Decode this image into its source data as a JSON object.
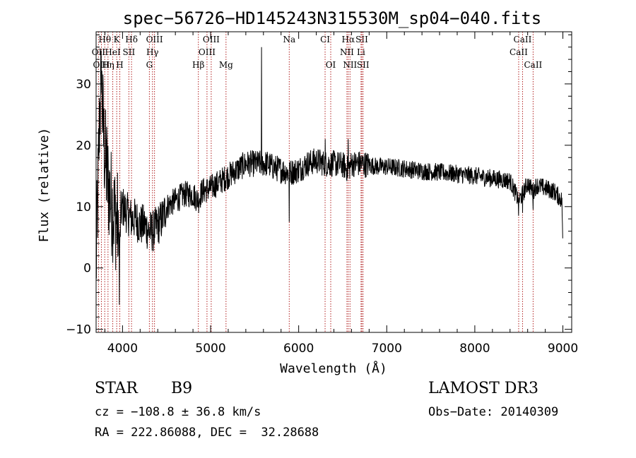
{
  "chart_data": {
    "type": "line",
    "title": "spec−56726−HD145243N315530M_sp04−040.fits",
    "xlabel": "Wavelength (Å)",
    "ylabel": "Flux (relative)",
    "xlim": [
      3700,
      9100
    ],
    "ylim": [
      -10.5,
      38.5
    ],
    "xticks": [
      4000,
      5000,
      6000,
      7000,
      8000,
      9000
    ],
    "xtick_labels": [
      "4000",
      "5000",
      "6000",
      "7000",
      "8000",
      "9000"
    ],
    "yticks": [
      -10,
      0,
      10,
      20,
      30
    ],
    "ytick_labels": [
      "−10",
      "0",
      "10",
      "20",
      "30"
    ],
    "series": [
      {
        "name": "flux",
        "anchors": [
          [
            3700,
            0
          ],
          [
            3720,
            12
          ],
          [
            3740,
            25
          ],
          [
            3760,
            30
          ],
          [
            3790,
            20
          ],
          [
            3830,
            14
          ],
          [
            3870,
            11
          ],
          [
            3900,
            9
          ],
          [
            3930,
            8
          ],
          [
            3950,
            7
          ],
          [
            3970,
            3
          ],
          [
            3980,
            9
          ],
          [
            4000,
            10
          ],
          [
            4050,
            9
          ],
          [
            4100,
            8
          ],
          [
            4150,
            8
          ],
          [
            4200,
            7
          ],
          [
            4250,
            7
          ],
          [
            4300,
            6
          ],
          [
            4350,
            6
          ],
          [
            4400,
            7
          ],
          [
            4450,
            8
          ],
          [
            4500,
            10
          ],
          [
            4600,
            11
          ],
          [
            4700,
            12
          ],
          [
            4800,
            12
          ],
          [
            4862,
            11
          ],
          [
            4900,
            12.5
          ],
          [
            5000,
            13
          ],
          [
            5100,
            14
          ],
          [
            5200,
            15
          ],
          [
            5300,
            16
          ],
          [
            5400,
            17
          ],
          [
            5500,
            17
          ],
          [
            5577,
            17
          ],
          [
            5650,
            17
          ],
          [
            5700,
            16.5
          ],
          [
            5800,
            16
          ],
          [
            5893,
            15.5
          ],
          [
            6000,
            16
          ],
          [
            6100,
            17
          ],
          [
            6200,
            17.5
          ],
          [
            6300,
            17
          ],
          [
            6400,
            17
          ],
          [
            6500,
            16.8
          ],
          [
            6563,
            16
          ],
          [
            6600,
            17
          ],
          [
            6700,
            17
          ],
          [
            6800,
            16.8
          ],
          [
            6900,
            16.5
          ],
          [
            7000,
            16.5
          ],
          [
            7200,
            16.2
          ],
          [
            7400,
            15.8
          ],
          [
            7600,
            15.6
          ],
          [
            7800,
            15.3
          ],
          [
            8000,
            15
          ],
          [
            8200,
            14.6
          ],
          [
            8400,
            14.2
          ],
          [
            8498,
            11
          ],
          [
            8542,
            12
          ],
          [
            8600,
            13.8
          ],
          [
            8662,
            12.5
          ],
          [
            8700,
            13.5
          ],
          [
            8800,
            13
          ],
          [
            8900,
            12.5
          ],
          [
            8990,
            11
          ],
          [
            9000,
            2
          ]
        ],
        "spikes": [
          [
            3760,
            30
          ],
          [
            3745,
            27
          ],
          [
            3790,
            26
          ],
          [
            3820,
            23
          ],
          [
            3965,
            -6
          ],
          [
            5577,
            36
          ],
          [
            5893,
            7.5
          ],
          [
            6300,
            21
          ],
          [
            6563,
            21
          ],
          [
            8498,
            8.5
          ],
          [
            8542,
            9
          ],
          [
            8662,
            9.5
          ],
          [
            9000,
            2
          ]
        ]
      }
    ],
    "line_markers": [
      {
        "label": "Hθ",
        "x": 3798,
        "row": 0
      },
      {
        "label": "K",
        "x": 3934,
        "row": 0
      },
      {
        "label": "Hδ",
        "x": 4102,
        "row": 0
      },
      {
        "label": "OIII",
        "x": 4363,
        "row": 0
      },
      {
        "label": "OIII",
        "x": 5007,
        "row": 0
      },
      {
        "label": "CI",
        "x": 6300,
        "row": 0
      },
      {
        "label": "Hα",
        "x": 6563,
        "row": 0
      },
      {
        "label": "SII",
        "x": 6717,
        "row": 0
      },
      {
        "label": "CaII",
        "x": 8542,
        "row": 0
      },
      {
        "label": "OII",
        "x": 3727,
        "row": 1
      },
      {
        "label": "HeI",
        "x": 3889,
        "row": 1
      },
      {
        "label": "SII",
        "x": 4072,
        "row": 1
      },
      {
        "label": "Hγ",
        "x": 4340,
        "row": 1
      },
      {
        "label": "OIII",
        "x": 4959,
        "row": 1
      },
      {
        "label": "NII",
        "x": 6548,
        "row": 1
      },
      {
        "label": "Li",
        "x": 6708,
        "row": 1
      },
      {
        "label": "CaII",
        "x": 8498,
        "row": 1
      },
      {
        "label": "OIII",
        "x": 3760,
        "row": 2
      },
      {
        "label": "Hη",
        "x": 3835,
        "row": 2
      },
      {
        "label": "H",
        "x": 3969,
        "row": 2
      },
      {
        "label": "G",
        "x": 4305,
        "row": 2
      },
      {
        "label": "Hβ",
        "x": 4861,
        "row": 2
      },
      {
        "label": "Mg",
        "x": 5175,
        "row": 2
      },
      {
        "label": "Na",
        "x": 5893,
        "row": 0
      },
      {
        "label": "OI",
        "x": 6364,
        "row": 2
      },
      {
        "label": "NII",
        "x": 6583,
        "row": 2
      },
      {
        "label": "SII",
        "x": 6731,
        "row": 2
      },
      {
        "label": "CaII",
        "x": 8662,
        "row": 2
      }
    ]
  },
  "footer": {
    "object_class": "STAR",
    "object_subclass": "B9",
    "survey": "LAMOST DR3",
    "cz": "cz = −108.8 ± 36.8 km/s",
    "obs_date": "Obs−Date: 20140309",
    "radec": "RA = 222.86088, DEC =  32.28688"
  },
  "colors": {
    "axis": "#000000",
    "spectrum": "#000000",
    "marker": "#b22222"
  }
}
